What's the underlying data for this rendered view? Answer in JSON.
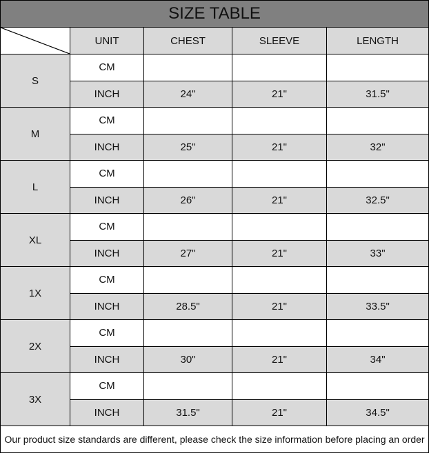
{
  "title": "SIZE TABLE",
  "headers": [
    "UNIT",
    "CHEST",
    "SLEEVE",
    "LENGTH"
  ],
  "colors": {
    "title_bg": "#808080",
    "cell_gray": "#d9d9d9"
  },
  "sizes": [
    {
      "size": "S",
      "cm_label": "CM",
      "inch_label": "INCH",
      "inch": [
        "24\"",
        "21\"",
        "31.5\""
      ]
    },
    {
      "size": "M",
      "cm_label": "CM",
      "inch_label": "INCH",
      "inch": [
        "25\"",
        "21\"",
        "32\""
      ]
    },
    {
      "size": "L",
      "cm_label": "CM",
      "inch_label": "INCH",
      "inch": [
        "26\"",
        "21\"",
        "32.5\""
      ]
    },
    {
      "size": "XL",
      "cm_label": "CM",
      "inch_label": "INCH",
      "inch": [
        "27\"",
        "21\"",
        "33\""
      ]
    },
    {
      "size": "1X",
      "cm_label": "CM",
      "inch_label": "INCH",
      "inch": [
        "28.5\"",
        "21\"",
        "33.5\""
      ]
    },
    {
      "size": "2X",
      "cm_label": "CM",
      "inch_label": "INCH",
      "inch": [
        "30\"",
        "21\"",
        "34\""
      ]
    },
    {
      "size": "3X",
      "cm_label": "CM",
      "inch_label": "INCH",
      "inch": [
        "31.5\"",
        "21\"",
        "34.5\""
      ]
    }
  ],
  "footer": "Our product size standards are different, please check the size information before placing an order"
}
